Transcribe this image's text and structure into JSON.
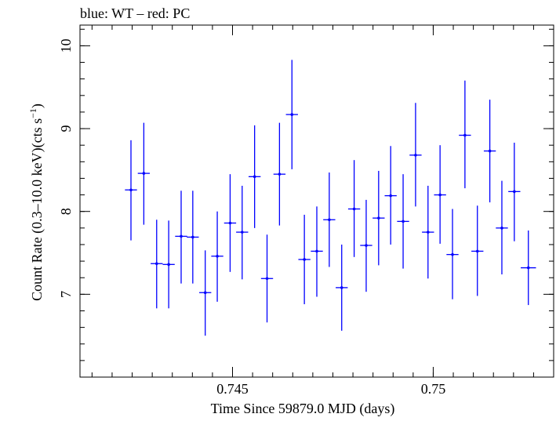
{
  "chart_data": {
    "type": "scatter",
    "title": "blue: WT – red: PC",
    "xlabel": "Time Since 59879.0 MJD (days)",
    "ylabel_main": "Count Rate (0.3–10.0 keV)(cts s",
    "ylabel_sup": "−1",
    "ylabel_tail": ")",
    "xlim": [
      0.7412,
      0.753
    ],
    "ylim": [
      6.0,
      10.25
    ],
    "x_ticks": [
      0.745,
      0.75
    ],
    "x_tick_labels": [
      "0.745",
      "0.75"
    ],
    "y_ticks": [
      7,
      8,
      9,
      10
    ],
    "y_tick_labels": [
      "7",
      "8",
      "9",
      "10"
    ],
    "x_minor_step": 0.0005,
    "y_minor_step": 0.2,
    "grid": false,
    "colors": {
      "WT": "#0000ff",
      "PC": "#ff0000"
    },
    "series": [
      {
        "name": "WT",
        "color": "#0000ff",
        "points": [
          {
            "x": 0.74247,
            "y": 8.26,
            "xerr": 0.00015,
            "ylo": 7.65,
            "yhi": 8.86
          },
          {
            "x": 0.74279,
            "y": 8.46,
            "xerr": 0.00015,
            "ylo": 7.84,
            "yhi": 9.07
          },
          {
            "x": 0.74311,
            "y": 7.37,
            "xerr": 0.00015,
            "ylo": 6.83,
            "yhi": 7.9
          },
          {
            "x": 0.74341,
            "y": 7.36,
            "xerr": 0.00015,
            "ylo": 6.83,
            "yhi": 7.89
          },
          {
            "x": 0.74372,
            "y": 7.7,
            "xerr": 0.00015,
            "ylo": 7.13,
            "yhi": 8.25
          },
          {
            "x": 0.74401,
            "y": 7.69,
            "xerr": 0.00015,
            "ylo": 7.13,
            "yhi": 8.25
          },
          {
            "x": 0.74432,
            "y": 7.02,
            "xerr": 0.00015,
            "ylo": 6.5,
            "yhi": 7.53
          },
          {
            "x": 0.74462,
            "y": 7.46,
            "xerr": 0.00015,
            "ylo": 6.91,
            "yhi": 8.0
          },
          {
            "x": 0.74494,
            "y": 7.86,
            "xerr": 0.00015,
            "ylo": 7.27,
            "yhi": 8.45
          },
          {
            "x": 0.74524,
            "y": 7.75,
            "xerr": 0.00015,
            "ylo": 7.18,
            "yhi": 8.31
          },
          {
            "x": 0.74555,
            "y": 8.42,
            "xerr": 0.00015,
            "ylo": 7.8,
            "yhi": 9.04
          },
          {
            "x": 0.74586,
            "y": 7.19,
            "xerr": 0.00015,
            "ylo": 6.66,
            "yhi": 7.72
          },
          {
            "x": 0.74617,
            "y": 8.45,
            "xerr": 0.00015,
            "ylo": 7.83,
            "yhi": 9.07
          },
          {
            "x": 0.74648,
            "y": 9.17,
            "xerr": 0.00015,
            "ylo": 8.51,
            "yhi": 9.83
          },
          {
            "x": 0.74679,
            "y": 7.42,
            "xerr": 0.00015,
            "ylo": 6.88,
            "yhi": 7.96
          },
          {
            "x": 0.7471,
            "y": 7.52,
            "xerr": 0.00015,
            "ylo": 6.97,
            "yhi": 8.06
          },
          {
            "x": 0.74741,
            "y": 7.9,
            "xerr": 0.00015,
            "ylo": 7.33,
            "yhi": 8.47
          },
          {
            "x": 0.74772,
            "y": 7.08,
            "xerr": 0.00015,
            "ylo": 6.56,
            "yhi": 7.6
          },
          {
            "x": 0.74803,
            "y": 8.03,
            "xerr": 0.00015,
            "ylo": 7.45,
            "yhi": 8.62
          },
          {
            "x": 0.74833,
            "y": 7.59,
            "xerr": 0.00015,
            "ylo": 7.03,
            "yhi": 8.14
          },
          {
            "x": 0.74864,
            "y": 7.92,
            "xerr": 0.00015,
            "ylo": 7.35,
            "yhi": 8.49
          },
          {
            "x": 0.74894,
            "y": 8.19,
            "xerr": 0.00015,
            "ylo": 7.6,
            "yhi": 8.79
          },
          {
            "x": 0.74925,
            "y": 7.88,
            "xerr": 0.00015,
            "ylo": 7.31,
            "yhi": 8.45
          },
          {
            "x": 0.74956,
            "y": 8.68,
            "xerr": 0.00015,
            "ylo": 8.06,
            "yhi": 9.31
          },
          {
            "x": 0.74987,
            "y": 7.75,
            "xerr": 0.00015,
            "ylo": 7.19,
            "yhi": 8.31
          },
          {
            "x": 0.75017,
            "y": 8.2,
            "xerr": 0.00015,
            "ylo": 7.61,
            "yhi": 8.8
          },
          {
            "x": 0.75048,
            "y": 7.48,
            "xerr": 0.00015,
            "ylo": 6.94,
            "yhi": 8.03
          },
          {
            "x": 0.75079,
            "y": 8.92,
            "xerr": 0.00015,
            "ylo": 8.28,
            "yhi": 9.58
          },
          {
            "x": 0.7511,
            "y": 7.52,
            "xerr": 0.00015,
            "ylo": 6.98,
            "yhi": 8.07
          },
          {
            "x": 0.75141,
            "y": 8.73,
            "xerr": 0.00015,
            "ylo": 8.11,
            "yhi": 9.35
          },
          {
            "x": 0.75171,
            "y": 7.8,
            "xerr": 0.00015,
            "ylo": 7.24,
            "yhi": 8.37
          },
          {
            "x": 0.75202,
            "y": 8.24,
            "xerr": 0.00015,
            "ylo": 7.64,
            "yhi": 8.83
          },
          {
            "x": 0.75237,
            "y": 7.32,
            "xerr": 0.00019,
            "ylo": 6.87,
            "yhi": 7.77
          }
        ]
      }
    ]
  }
}
